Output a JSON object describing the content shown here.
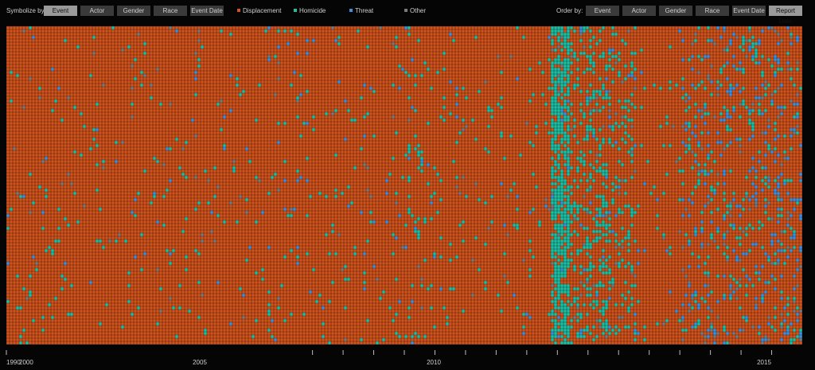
{
  "toolbar": {
    "symbolize_label": "Symbolize by:",
    "symbolize_buttons": [
      "Event",
      "Actor",
      "Gender",
      "Race",
      "Event Date"
    ],
    "symbolize_active": "Event",
    "legend": [
      {
        "label": "Displacement",
        "color": "#d2541c"
      },
      {
        "label": "Homicide",
        "color": "#1fbfa4"
      },
      {
        "label": "Threat",
        "color": "#3f8fdc"
      },
      {
        "label": "Other",
        "color": "#7a7a7a"
      }
    ],
    "order_label": "Order by:",
    "order_buttons": [
      "Event",
      "Actor",
      "Gender",
      "Race",
      "Event Date",
      "Report Date"
    ],
    "order_active": "Report Date"
  },
  "chart_data": {
    "type": "heatmap",
    "x_axis": {
      "range": [
        1990,
        2016
      ],
      "tick_labels": [
        "1990",
        "2000",
        "2005",
        "2010",
        "2015"
      ]
    },
    "categories": [
      "Displacement",
      "Homicide",
      "Threat",
      "Other"
    ],
    "periods": [
      {
        "from": 1990,
        "to": 2002.7,
        "composition": {
          "Displacement": 0.97,
          "Homicide": 0.02,
          "Threat": 0.005,
          "Other": 0.005
        }
      },
      {
        "from": 2002.7,
        "to": 2003.6,
        "composition": {
          "Displacement": 0.93,
          "Homicide": 0.05,
          "Threat": 0.01,
          "Other": 0.01
        }
      },
      {
        "from": 2003.6,
        "to": 2007.8,
        "composition": {
          "Displacement": 0.96,
          "Homicide": 0.03,
          "Threat": 0.005,
          "Other": 0.005
        }
      },
      {
        "from": 2007.8,
        "to": 2008.4,
        "composition": {
          "Displacement": 0.35,
          "Homicide": 0.6,
          "Threat": 0.03,
          "Other": 0.02
        }
      },
      {
        "from": 2008.4,
        "to": 2009.7,
        "composition": {
          "Displacement": 0.72,
          "Homicide": 0.24,
          "Threat": 0.02,
          "Other": 0.02
        }
      },
      {
        "from": 2009.7,
        "to": 2010.6,
        "composition": {
          "Displacement": 0.82,
          "Homicide": 0.14,
          "Threat": 0.02,
          "Other": 0.02
        }
      },
      {
        "from": 2010.6,
        "to": 2012.0,
        "composition": {
          "Displacement": 0.97,
          "Homicide": 0.02,
          "Threat": 0.005,
          "Other": 0.005
        }
      },
      {
        "from": 2012.0,
        "to": 2016,
        "composition": {
          "Displacement": 0.84,
          "Homicide": 0.06,
          "Threat": 0.07,
          "Other": 0.03
        }
      }
    ]
  }
}
